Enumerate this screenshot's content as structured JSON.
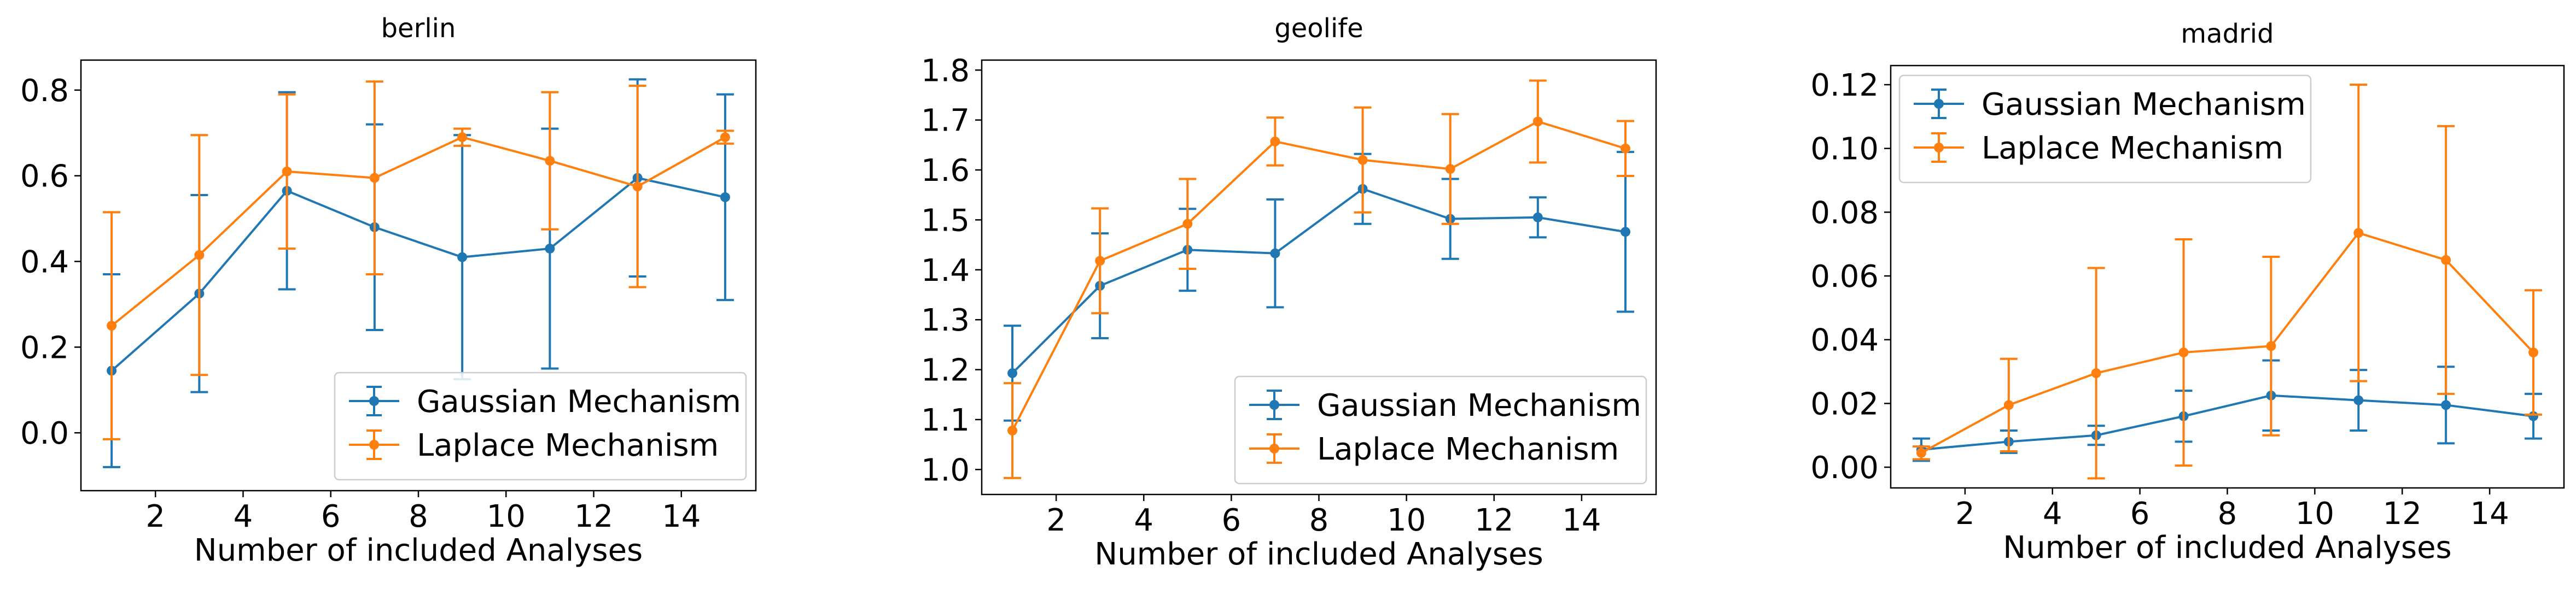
{
  "colors": {
    "gaussian": "#1f77b4",
    "laplace": "#ff7f0e"
  },
  "chart_data": [
    {
      "type": "line",
      "title": "berlin",
      "xlabel": "Number of included Analyses",
      "ylabel": "",
      "xlim": [
        0.3,
        15.7
      ],
      "ylim": [
        -0.135,
        0.87
      ],
      "xticks": [
        2,
        4,
        6,
        8,
        10,
        12,
        14
      ],
      "yticks": [
        0.0,
        0.2,
        0.4,
        0.6,
        0.8
      ],
      "ytick_labels": [
        "0.0",
        "0.2",
        "0.4",
        "0.6",
        "0.8"
      ],
      "legend_position": "lower-right",
      "x": [
        1,
        3,
        5,
        7,
        9,
        11,
        13,
        15
      ],
      "series": [
        {
          "name": "Gaussian Mechanism",
          "color": "#1f77b4",
          "values": [
            0.145,
            0.325,
            0.565,
            0.48,
            0.41,
            0.43,
            0.595,
            0.55
          ],
          "errors": [
            0.225,
            0.23,
            0.23,
            0.24,
            0.285,
            0.28,
            0.23,
            0.24
          ]
        },
        {
          "name": "Laplace Mechanism",
          "color": "#ff7f0e",
          "values": [
            0.25,
            0.415,
            0.61,
            0.595,
            0.69,
            0.635,
            0.575,
            0.69
          ],
          "errors": [
            0.265,
            0.28,
            0.18,
            0.225,
            0.02,
            0.16,
            0.235,
            0.015
          ]
        }
      ]
    },
    {
      "type": "line",
      "title": "geolife",
      "xlabel": "Number of included Analyses",
      "ylabel": "",
      "xlim": [
        0.3,
        15.7
      ],
      "ylim": [
        0.95,
        1.82
      ],
      "xticks": [
        2,
        4,
        6,
        8,
        10,
        12,
        14
      ],
      "yticks": [
        1.0,
        1.1,
        1.2,
        1.3,
        1.4,
        1.5,
        1.6,
        1.7,
        1.8
      ],
      "ytick_labels": [
        "1.0",
        "1.1",
        "1.2",
        "1.3",
        "1.4",
        "1.5",
        "1.6",
        "1.7",
        "1.8"
      ],
      "legend_position": "lower-right",
      "x": [
        1,
        3,
        5,
        7,
        9,
        11,
        13,
        15
      ],
      "series": [
        {
          "name": "Gaussian Mechanism",
          "color": "#1f77b4",
          "values": [
            1.193,
            1.368,
            1.44,
            1.433,
            1.562,
            1.502,
            1.505,
            1.476
          ],
          "errors": [
            0.095,
            0.105,
            0.082,
            0.108,
            0.07,
            0.08,
            0.04,
            0.16
          ]
        },
        {
          "name": "Laplace Mechanism",
          "color": "#ff7f0e",
          "values": [
            1.078,
            1.418,
            1.492,
            1.657,
            1.62,
            1.602,
            1.697,
            1.643
          ],
          "errors": [
            0.095,
            0.105,
            0.09,
            0.048,
            0.105,
            0.11,
            0.082,
            0.055
          ]
        }
      ]
    },
    {
      "type": "line",
      "title": "madrid",
      "xlabel": "Number of included Analyses",
      "ylabel": "",
      "xlim": [
        0.3,
        15.7
      ],
      "ylim": [
        -0.0065,
        0.126
      ],
      "xticks": [
        2,
        4,
        6,
        8,
        10,
        12,
        14
      ],
      "yticks": [
        0.0,
        0.02,
        0.04,
        0.06,
        0.08,
        0.1,
        0.12
      ],
      "ytick_labels": [
        "0.00",
        "0.02",
        "0.04",
        "0.06",
        "0.08",
        "0.10",
        "0.12"
      ],
      "legend_position": "upper-left",
      "x": [
        1,
        3,
        5,
        7,
        9,
        11,
        13,
        15
      ],
      "series": [
        {
          "name": "Gaussian Mechanism",
          "color": "#1f77b4",
          "values": [
            0.0055,
            0.008,
            0.01,
            0.016,
            0.0225,
            0.021,
            0.0195,
            0.016
          ],
          "errors": [
            0.0035,
            0.0035,
            0.003,
            0.008,
            0.011,
            0.0095,
            0.012,
            0.007
          ]
        },
        {
          "name": "Laplace Mechanism",
          "color": "#ff7f0e",
          "values": [
            0.0045,
            0.0195,
            0.0295,
            0.036,
            0.038,
            0.0735,
            0.065,
            0.036
          ],
          "errors": [
            0.002,
            0.0145,
            0.033,
            0.0355,
            0.028,
            0.0465,
            0.042,
            0.0195
          ]
        }
      ]
    }
  ]
}
